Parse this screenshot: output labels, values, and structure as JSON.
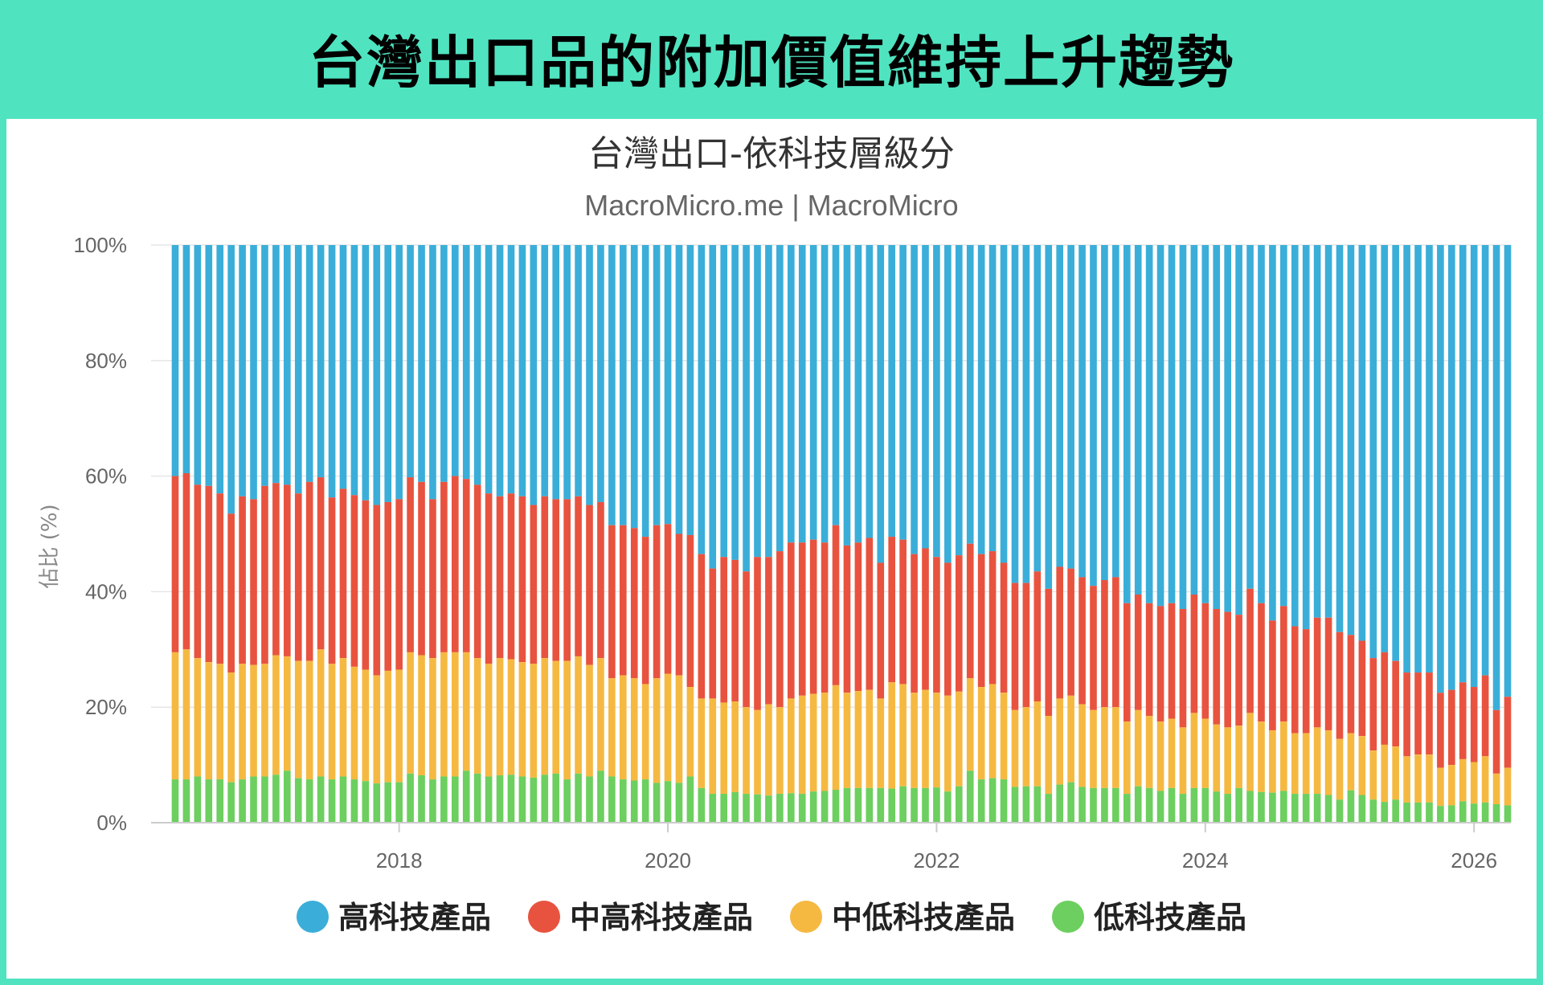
{
  "header": {
    "title": "台灣出口品的附加價值維持上升趨勢"
  },
  "chart_data": {
    "type": "bar",
    "stacked": true,
    "title": "台灣出口-依科技層級分",
    "subtitle": "MacroMicro.me | MacroMicro",
    "ylabel": "佔比 (%)",
    "ylim": [
      0,
      100
    ],
    "y_ticks": [
      "0%",
      "20%",
      "40%",
      "60%",
      "80%",
      "100%"
    ],
    "x_ticks": [
      "2018",
      "2020",
      "2022",
      "2024",
      "2026"
    ],
    "x_start": "2016-05",
    "x_end": "2026-04",
    "grid": true,
    "legend_position": "bottom",
    "series": [
      {
        "name": "高科技產品",
        "color": "#3aaed8"
      },
      {
        "name": "中高科技產品",
        "color": "#e8533f"
      },
      {
        "name": "中低科技產品",
        "color": "#f5b942"
      },
      {
        "name": "低科技產品",
        "color": "#6ccf5f"
      }
    ],
    "cumulative_top_mid_high": [
      60,
      60.5,
      58.5,
      58.3,
      57,
      53.5,
      56.5,
      56,
      58.3,
      58.8,
      58.5,
      57,
      59,
      59.8,
      56.3,
      57.8,
      56.7,
      55.8,
      55,
      55.5,
      56,
      59.8,
      59,
      56,
      59,
      60,
      59.5,
      58.5,
      57,
      56.5,
      57,
      56.5,
      55,
      56.5,
      56,
      56,
      56.5,
      55,
      55.5,
      51.5,
      51.5,
      51,
      49.5,
      51.5,
      51.7,
      50,
      49.8,
      46.5,
      44,
      46,
      45.5,
      43.5,
      46,
      46,
      47,
      48.5,
      48.5,
      49,
      48.5,
      51.5,
      48,
      48.5,
      49.3,
      45,
      49.5,
      49,
      46.5,
      47.5,
      46,
      45,
      46.3,
      48.3,
      46.5,
      47,
      45,
      41.5,
      41.5,
      43.5,
      40.5,
      44.3,
      44,
      42.5,
      41,
      42,
      42.5,
      38,
      39.5,
      38,
      37.5,
      38,
      37,
      39.5,
      38,
      37,
      36.5,
      36,
      40.5,
      38,
      35,
      37.5,
      34,
      33.5,
      35.5,
      35.5,
      33,
      32.5,
      31.5,
      28.5,
      29.5,
      28,
      26,
      26,
      26,
      22.5,
      23,
      24.3,
      23.5,
      25.5,
      19.5,
      21.8
    ],
    "cumulative_top_mid_low": [
      29.5,
      30,
      28.5,
      27.8,
      27.5,
      26,
      27.5,
      27.3,
      27.5,
      29,
      28.8,
      28,
      28,
      30,
      27.5,
      28.5,
      27,
      26.5,
      25.5,
      26.3,
      26.5,
      29.5,
      29,
      28.5,
      29.5,
      29.5,
      29.5,
      28.5,
      27.5,
      28.5,
      28.3,
      27.8,
      27.5,
      28.5,
      28,
      28,
      28.8,
      27.3,
      28.5,
      25,
      25.5,
      25,
      24,
      25,
      25.8,
      25.5,
      23.5,
      21.5,
      21.5,
      20.8,
      21,
      20,
      19.5,
      20.5,
      20,
      21.5,
      22,
      22.3,
      22.5,
      23.8,
      22.5,
      22.8,
      23,
      21.5,
      24.3,
      24,
      22.5,
      23,
      22.5,
      22,
      22.7,
      25,
      23.5,
      24,
      22.5,
      19.5,
      20,
      21,
      18.5,
      21.5,
      22,
      20.5,
      19.5,
      20,
      20,
      17.5,
      19.5,
      18.5,
      17.5,
      18,
      16.5,
      19,
      18,
      17,
      16.5,
      16.8,
      19,
      17.5,
      16,
      17.5,
      15.5,
      15.5,
      16.5,
      16,
      14.5,
      15.5,
      15,
      12.5,
      13.5,
      13.2,
      11.5,
      11.8,
      11.8,
      9.5,
      10,
      11,
      10.5,
      11.5,
      8.5,
      9.5
    ],
    "low_tech": [
      7.5,
      7.5,
      8,
      7.5,
      7.5,
      7,
      7.5,
      8,
      8,
      8.3,
      9,
      7.7,
      7.5,
      8,
      7.5,
      8,
      7.5,
      7.2,
      6.8,
      7,
      7,
      8.5,
      8.2,
      7.5,
      8,
      8,
      9,
      8.5,
      8,
      8.2,
      8.3,
      8,
      7.8,
      8.3,
      8.5,
      7.5,
      8.5,
      8,
      9,
      8,
      7.5,
      7.3,
      7.5,
      6.9,
      7.2,
      6.9,
      8,
      6,
      5,
      5,
      5.3,
      5,
      4.9,
      4.7,
      5,
      5.1,
      5,
      5.4,
      5.5,
      5.7,
      6,
      6,
      6,
      6,
      5.9,
      6.3,
      6,
      6,
      6.1,
      5.4,
      6.3,
      9,
      7.5,
      7.7,
      7.5,
      6.2,
      6.3,
      6.3,
      5,
      6.6,
      7,
      6.2,
      6,
      6,
      6,
      5,
      6.3,
      6,
      5.5,
      6,
      5,
      6,
      6,
      5.4,
      5,
      6,
      5.5,
      5.3,
      5.2,
      5.5,
      5,
      5,
      5,
      4.8,
      4,
      5.6,
      4.8,
      4,
      3.6,
      4,
      3.5,
      3.5,
      3.5,
      2.9,
      3,
      3.7,
      3.3,
      3.5,
      3.2,
      3
    ]
  },
  "legend": [
    {
      "label": "高科技產品",
      "color": "#3aaed8"
    },
    {
      "label": "中高科技產品",
      "color": "#e8533f"
    },
    {
      "label": "中低科技產品",
      "color": "#f5b942"
    },
    {
      "label": "低科技產品",
      "color": "#6ccf5f"
    }
  ]
}
